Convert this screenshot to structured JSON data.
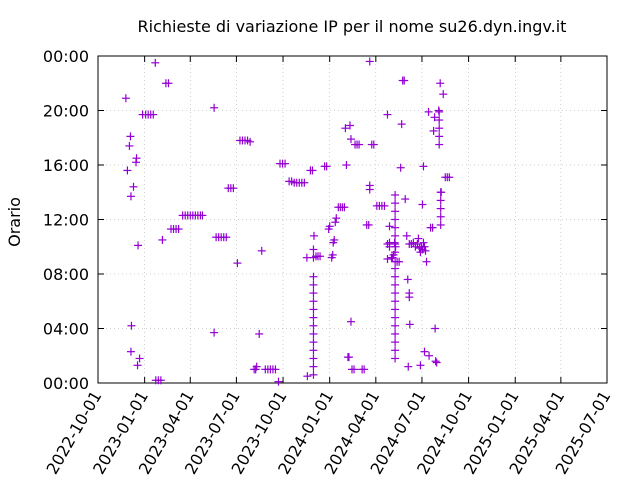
{
  "chart_data": {
    "type": "scatter",
    "title": "Richieste di variazione IP per il nome su26.dyn.ingv.it",
    "xlabel": "",
    "ylabel": "Orario",
    "x_range": [
      "2022-10-01",
      "2025-07-01"
    ],
    "y_range_hours": [
      0,
      24
    ],
    "x_ticks": [
      "2022-10-01",
      "2023-01-01",
      "2023-04-01",
      "2023-07-01",
      "2023-10-01",
      "2024-01-01",
      "2024-04-01",
      "2024-07-01",
      "2024-10-01",
      "2025-01-01",
      "2025-04-01",
      "2025-07-01"
    ],
    "y_ticks": [
      {
        "hour": 0,
        "label": "00:00"
      },
      {
        "hour": 4,
        "label": "04:00"
      },
      {
        "hour": 8,
        "label": "08:00"
      },
      {
        "hour": 12,
        "label": "12:00"
      },
      {
        "hour": 16,
        "label": "16:00"
      },
      {
        "hour": 20,
        "label": "20:00"
      },
      {
        "hour": 24,
        "label": "00:00"
      }
    ],
    "grid": true,
    "marker": "plus",
    "color": "#9400d3",
    "points": [
      [
        "2022-11-25",
        20.9
      ],
      [
        "2022-12-04",
        18.1
      ],
      [
        "2022-12-02",
        17.4
      ],
      [
        "2022-11-28",
        15.6
      ],
      [
        "2022-12-05",
        13.7
      ],
      [
        "2022-12-10",
        14.4
      ],
      [
        "2022-12-15",
        16.2
      ],
      [
        "2022-12-16",
        16.5
      ],
      [
        "2022-12-19",
        10.1
      ],
      [
        "2022-12-06",
        4.2
      ],
      [
        "2022-12-05",
        2.3
      ],
      [
        "2022-12-18",
        1.3
      ],
      [
        "2022-12-22",
        1.8
      ],
      [
        "2022-12-28",
        19.7
      ],
      [
        "2023-01-03",
        19.7
      ],
      [
        "2023-01-08",
        19.7
      ],
      [
        "2023-01-13",
        19.7
      ],
      [
        "2023-01-18",
        19.7
      ],
      [
        "2023-01-22",
        23.5
      ],
      [
        "2023-01-23",
        0.2
      ],
      [
        "2023-01-28",
        0.2
      ],
      [
        "2023-02-02",
        0.2
      ],
      [
        "2023-02-05",
        10.5
      ],
      [
        "2023-02-12",
        22.0
      ],
      [
        "2023-02-17",
        22.0
      ],
      [
        "2023-02-22",
        11.3
      ],
      [
        "2023-02-27",
        11.3
      ],
      [
        "2023-03-04",
        11.3
      ],
      [
        "2023-03-09",
        11.3
      ],
      [
        "2023-03-17",
        12.3
      ],
      [
        "2023-03-22",
        12.3
      ],
      [
        "2023-03-27",
        12.3
      ],
      [
        "2023-04-01",
        12.3
      ],
      [
        "2023-04-06",
        12.3
      ],
      [
        "2023-04-11",
        12.3
      ],
      [
        "2023-04-16",
        12.3
      ],
      [
        "2023-04-21",
        12.3
      ],
      [
        "2023-04-25",
        12.3
      ],
      [
        "2023-05-18",
        20.2
      ],
      [
        "2023-05-18",
        3.7
      ],
      [
        "2023-05-22",
        10.7
      ],
      [
        "2023-05-27",
        10.7
      ],
      [
        "2023-06-01",
        10.7
      ],
      [
        "2023-06-06",
        10.7
      ],
      [
        "2023-06-11",
        10.7
      ],
      [
        "2023-06-15",
        14.3
      ],
      [
        "2023-06-20",
        14.3
      ],
      [
        "2023-06-25",
        14.3
      ],
      [
        "2023-07-03",
        8.8
      ],
      [
        "2023-07-08",
        17.8
      ],
      [
        "2023-07-13",
        17.8
      ],
      [
        "2023-07-18",
        17.8
      ],
      [
        "2023-07-23",
        17.8
      ],
      [
        "2023-07-28",
        17.7
      ],
      [
        "2023-08-05",
        1.0
      ],
      [
        "2023-08-08",
        1.0
      ],
      [
        "2023-08-10",
        1.2
      ],
      [
        "2023-08-15",
        3.6
      ],
      [
        "2023-08-20",
        9.7
      ],
      [
        "2023-08-27",
        1.0
      ],
      [
        "2023-09-01",
        1.0
      ],
      [
        "2023-09-06",
        1.0
      ],
      [
        "2023-09-11",
        1.0
      ],
      [
        "2023-09-16",
        1.0
      ],
      [
        "2023-09-22",
        0.1
      ],
      [
        "2023-09-25",
        16.1
      ],
      [
        "2023-09-30",
        16.1
      ],
      [
        "2023-10-05",
        16.1
      ],
      [
        "2023-10-13",
        14.8
      ],
      [
        "2023-10-18",
        14.8
      ],
      [
        "2023-10-23",
        14.7
      ],
      [
        "2023-10-28",
        14.7
      ],
      [
        "2023-11-02",
        14.7
      ],
      [
        "2023-11-07",
        14.7
      ],
      [
        "2023-11-12",
        14.7
      ],
      [
        "2023-11-17",
        9.2
      ],
      [
        "2023-11-18",
        0.5
      ],
      [
        "2023-11-24",
        15.6
      ],
      [
        "2023-11-28",
        15.6
      ],
      [
        "2023-11-30",
        0.6
      ],
      [
        "2023-11-30",
        1.2
      ],
      [
        "2023-11-30",
        1.8
      ],
      [
        "2023-11-30",
        2.4
      ],
      [
        "2023-11-30",
        3.0
      ],
      [
        "2023-11-30",
        3.6
      ],
      [
        "2023-11-30",
        4.2
      ],
      [
        "2023-11-30",
        4.8
      ],
      [
        "2023-11-30",
        5.4
      ],
      [
        "2023-11-30",
        6.0
      ],
      [
        "2023-11-30",
        6.6
      ],
      [
        "2023-11-30",
        7.2
      ],
      [
        "2023-11-30",
        7.8
      ],
      [
        "2023-11-30",
        9.2
      ],
      [
        "2023-11-30",
        9.8
      ],
      [
        "2023-12-01",
        10.8
      ],
      [
        "2023-12-05",
        9.3
      ],
      [
        "2023-12-09",
        9.3
      ],
      [
        "2023-12-13",
        9.3
      ],
      [
        "2023-12-22",
        15.9
      ],
      [
        "2023-12-26",
        15.9
      ],
      [
        "2023-12-30",
        11.3
      ],
      [
        "2024-01-01",
        11.5
      ],
      [
        "2024-01-05",
        9.2
      ],
      [
        "2024-01-07",
        9.4
      ],
      [
        "2024-01-08",
        10.3
      ],
      [
        "2024-01-10",
        10.5
      ],
      [
        "2024-01-12",
        11.8
      ],
      [
        "2024-01-14",
        12.1
      ],
      [
        "2024-01-18",
        12.9
      ],
      [
        "2024-01-22",
        12.9
      ],
      [
        "2024-01-26",
        12.9
      ],
      [
        "2024-01-30",
        12.9
      ],
      [
        "2024-02-01",
        18.7
      ],
      [
        "2024-02-03",
        16.0
      ],
      [
        "2024-02-06",
        1.9
      ],
      [
        "2024-02-08",
        1.9
      ],
      [
        "2024-02-10",
        18.9
      ],
      [
        "2024-02-12",
        4.5
      ],
      [
        "2024-02-12",
        17.9
      ],
      [
        "2024-02-14",
        1.0
      ],
      [
        "2024-02-18",
        1.0
      ],
      [
        "2024-02-20",
        17.5
      ],
      [
        "2024-02-24",
        17.5
      ],
      [
        "2024-02-28",
        17.5
      ],
      [
        "2024-03-05",
        1.0
      ],
      [
        "2024-03-09",
        1.0
      ],
      [
        "2024-03-14",
        11.6
      ],
      [
        "2024-03-18",
        11.6
      ],
      [
        "2024-03-20",
        14.5
      ],
      [
        "2024-03-20",
        14.2
      ],
      [
        "2024-03-20",
        23.6
      ],
      [
        "2024-03-24",
        17.5
      ],
      [
        "2024-03-28",
        17.5
      ],
      [
        "2024-04-03",
        13.0
      ],
      [
        "2024-04-08",
        13.0
      ],
      [
        "2024-04-13",
        13.0
      ],
      [
        "2024-04-18",
        13.0
      ],
      [
        "2024-04-24",
        19.7
      ],
      [
        "2024-04-24",
        10.2
      ],
      [
        "2024-04-24",
        9.1
      ],
      [
        "2024-04-28",
        11.5
      ],
      [
        "2024-04-28",
        10.3
      ],
      [
        "2024-04-28",
        10.0
      ],
      [
        "2024-05-02",
        9.2
      ],
      [
        "2024-05-04",
        9.2
      ],
      [
        "2024-05-06",
        9.4
      ],
      [
        "2024-05-08",
        10.3
      ],
      [
        "2024-05-10",
        10.0
      ],
      [
        "2024-05-09",
        13.8
      ],
      [
        "2024-05-09",
        13.2
      ],
      [
        "2024-05-09",
        12.6
      ],
      [
        "2024-05-09",
        12.0
      ],
      [
        "2024-05-09",
        11.4
      ],
      [
        "2024-05-09",
        10.8
      ],
      [
        "2024-05-09",
        10.2
      ],
      [
        "2024-05-09",
        9.6
      ],
      [
        "2024-05-09",
        8.4
      ],
      [
        "2024-05-09",
        7.8
      ],
      [
        "2024-05-09",
        7.2
      ],
      [
        "2024-05-09",
        6.6
      ],
      [
        "2024-05-09",
        6.0
      ],
      [
        "2024-05-09",
        5.4
      ],
      [
        "2024-05-09",
        4.8
      ],
      [
        "2024-05-09",
        4.2
      ],
      [
        "2024-05-09",
        3.6
      ],
      [
        "2024-05-09",
        3.0
      ],
      [
        "2024-05-09",
        2.4
      ],
      [
        "2024-05-09",
        1.8
      ],
      [
        "2024-05-09",
        8.9
      ],
      [
        "2024-05-13",
        8.9
      ],
      [
        "2024-05-17",
        8.9
      ],
      [
        "2024-05-20",
        15.8
      ],
      [
        "2024-05-22",
        19.0
      ],
      [
        "2024-05-24",
        22.2
      ],
      [
        "2024-05-27",
        22.2
      ],
      [
        "2024-05-29",
        13.5
      ],
      [
        "2024-06-01",
        10.8
      ],
      [
        "2024-06-03",
        7.6
      ],
      [
        "2024-06-06",
        6.6
      ],
      [
        "2024-06-06",
        6.3
      ],
      [
        "2024-06-07",
        4.3
      ],
      [
        "2024-06-04",
        1.2
      ],
      [
        "2024-06-06",
        10.2
      ],
      [
        "2024-06-10",
        10.2
      ],
      [
        "2024-06-14",
        10.3
      ],
      [
        "2024-06-18",
        10.0
      ],
      [
        "2024-06-22",
        10.2
      ],
      [
        "2024-06-24",
        10.6
      ],
      [
        "2024-06-26",
        9.9
      ],
      [
        "2024-06-28",
        9.6
      ],
      [
        "2024-06-30",
        10.0
      ],
      [
        "2024-07-02",
        9.8
      ],
      [
        "2024-07-04",
        10.3
      ],
      [
        "2024-07-06",
        10.0
      ],
      [
        "2024-07-08",
        9.7
      ],
      [
        "2024-06-28",
        1.3
      ],
      [
        "2024-07-02",
        13.1
      ],
      [
        "2024-07-04",
        15.9
      ],
      [
        "2024-07-06",
        2.3
      ],
      [
        "2024-07-10",
        8.9
      ],
      [
        "2024-07-14",
        19.9
      ],
      [
        "2024-07-15",
        2.0
      ],
      [
        "2024-07-18",
        11.4
      ],
      [
        "2024-07-22",
        11.4
      ],
      [
        "2024-07-24",
        18.5
      ],
      [
        "2024-07-26",
        19.5
      ],
      [
        "2024-07-27",
        4.0
      ],
      [
        "2024-07-28",
        1.6
      ],
      [
        "2024-07-30",
        1.5
      ],
      [
        "2024-08-03",
        20.0
      ],
      [
        "2024-08-04",
        19.9
      ],
      [
        "2024-08-04",
        19.3
      ],
      [
        "2024-08-04",
        18.7
      ],
      [
        "2024-08-04",
        18.1
      ],
      [
        "2024-08-04",
        17.5
      ],
      [
        "2024-08-06",
        22.0
      ],
      [
        "2024-08-07",
        14.0
      ],
      [
        "2024-08-07",
        13.4
      ],
      [
        "2024-08-07",
        12.8
      ],
      [
        "2024-08-07",
        12.2
      ],
      [
        "2024-08-07",
        11.6
      ],
      [
        "2024-08-08",
        14.0
      ],
      [
        "2024-08-12",
        21.2
      ],
      [
        "2024-08-16",
        15.1
      ],
      [
        "2024-08-20",
        15.1
      ],
      [
        "2024-08-24",
        15.1
      ]
    ]
  }
}
